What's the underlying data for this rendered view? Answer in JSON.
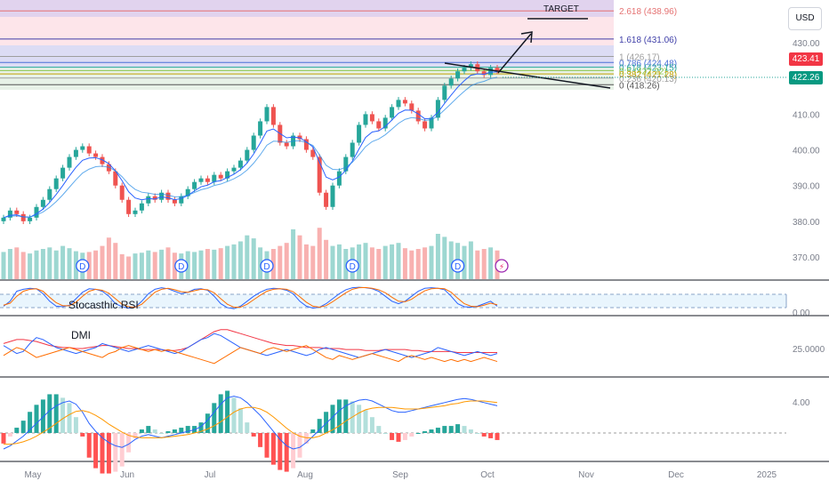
{
  "header": {
    "currency_label": "USD"
  },
  "colors": {
    "up": "#26a69a",
    "down": "#ef5350",
    "ema_fast": "#2962ff",
    "ema_slow": "#4c6ef5",
    "rsi_k": "#2962ff",
    "rsi_d": "#ff6d00",
    "dmi_plus": "#2962ff",
    "dmi_minus": "#ff6d00",
    "adx": "#f23645",
    "macd": "#2962ff",
    "signal": "#ff9800"
  },
  "chart_data": [
    {
      "type": "candlestick",
      "title": "",
      "x_ticks": [
        "May",
        "Jun",
        "Jul",
        "Aug",
        "Sep",
        "Oct",
        "Nov",
        "Dec",
        "2025"
      ],
      "y_ticks": [
        "370.00",
        "380.00",
        "390.00",
        "400.00",
        "410.00",
        "420.00",
        "430.00"
      ],
      "ylim": [
        366,
        442
      ],
      "price_labels": {
        "current": "423.41",
        "last": "422.26"
      },
      "fib_levels": [
        {
          "ratio": 2.618,
          "label": "2.618 (438.96)",
          "value": 438.96,
          "color": "#e57373"
        },
        {
          "ratio": 1.618,
          "label": "1.618 (431.06)",
          "value": 431.06,
          "color": "#3f3fa8"
        },
        {
          "ratio": 1.0,
          "label": "1 (426.17)",
          "value": 426.17,
          "color": "#9e9e9e"
        },
        {
          "ratio": 0.786,
          "label": "0.786 (424.48)",
          "value": 424.48,
          "color": "#4a6fd6"
        },
        {
          "ratio": 0.618,
          "label": "0.618 (423.15)",
          "value": 423.15,
          "color": "#26a69a"
        },
        {
          "ratio": 0.5,
          "label": "0.5 (422.22)",
          "value": 422.22,
          "color": "#8bc34a"
        },
        {
          "ratio": 0.382,
          "label": "0.382 (421.28)",
          "value": 421.28,
          "color": "#c0a000"
        },
        {
          "ratio": 0.236,
          "label": "0.236 (420.13)",
          "value": 420.13,
          "color": "#9e9e9e"
        },
        {
          "ratio": 0,
          "label": "0 (418.26)",
          "value": 418.26,
          "color": "#555555"
        }
      ],
      "annotations": {
        "target_label": "TARGET",
        "dividend_marker": "D",
        "earnings_marker": "⚡"
      },
      "series": [
        {
          "name": "price_close",
          "values": [
            381,
            383,
            382,
            380,
            381,
            384,
            386,
            389,
            392,
            395,
            398,
            400,
            401,
            399,
            398,
            396,
            394,
            390,
            386,
            382,
            383,
            385,
            387,
            386,
            388,
            386,
            385,
            387,
            389,
            391,
            392,
            391,
            393,
            392,
            394,
            395,
            397,
            400,
            404,
            408,
            412,
            407,
            402,
            401,
            404,
            403,
            400,
            398,
            388,
            384,
            390,
            394,
            398,
            402,
            407,
            410,
            408,
            406,
            409,
            412,
            414,
            413,
            411,
            408,
            406,
            409,
            414,
            418,
            420,
            422,
            423,
            424,
            422,
            421,
            423,
            422
          ]
        },
        {
          "name": "volume",
          "values": [
            36,
            40,
            42,
            36,
            34,
            38,
            40,
            42,
            38,
            44,
            41,
            37,
            35,
            36,
            38,
            44,
            55,
            48,
            33,
            30,
            34,
            35,
            38,
            36,
            39,
            42,
            35,
            34,
            37,
            36,
            38,
            40,
            39,
            41,
            44,
            46,
            50,
            58,
            54,
            42,
            37,
            40,
            44,
            48,
            66,
            58,
            46,
            44,
            68,
            52,
            44,
            46,
            40,
            42,
            46,
            48,
            42,
            40,
            44,
            46,
            48,
            41,
            38,
            40,
            42,
            44,
            60,
            56,
            50,
            48,
            44,
            50,
            38,
            40,
            42,
            38
          ]
        }
      ]
    },
    {
      "type": "line",
      "title": "Stocasthic RSI",
      "y_ticks": [
        "0.00"
      ],
      "series": [
        {
          "name": "K",
          "values": [
            20,
            40,
            80,
            88,
            92,
            90,
            70,
            40,
            20,
            18,
            24,
            50,
            76,
            90,
            88,
            80,
            60,
            30,
            18,
            12,
            16,
            40,
            70,
            88,
            94,
            90,
            80,
            70,
            76,
            88,
            90,
            84,
            60,
            30,
            14,
            10,
            20,
            40,
            60,
            76,
            88,
            92,
            90,
            84,
            70,
            40,
            20,
            12,
            16,
            30,
            50,
            70,
            86,
            94,
            96,
            94,
            90,
            80,
            60,
            40,
            30,
            40,
            60,
            80,
            92,
            94,
            92,
            86,
            60,
            30,
            18,
            16,
            20,
            30,
            40,
            20
          ]
        },
        {
          "name": "D",
          "values": [
            24,
            32,
            60,
            80,
            88,
            90,
            80,
            56,
            34,
            22,
            22,
            36,
            60,
            80,
            88,
            84,
            72,
            50,
            28,
            18,
            16,
            28,
            52,
            76,
            88,
            92,
            86,
            78,
            76,
            82,
            88,
            86,
            74,
            50,
            28,
            16,
            16,
            28,
            46,
            64,
            80,
            88,
            90,
            88,
            78,
            58,
            36,
            20,
            16,
            22,
            38,
            56,
            74,
            88,
            94,
            95,
            92,
            86,
            74,
            56,
            40,
            38,
            48,
            66,
            82,
            90,
            92,
            90,
            76,
            52,
            30,
            20,
            18,
            24,
            32,
            26
          ]
        }
      ]
    },
    {
      "type": "line",
      "title": "DMI",
      "y_ticks": [
        "25.0000"
      ],
      "series": [
        {
          "name": "+DI",
          "values": [
            28,
            24,
            20,
            22,
            30,
            36,
            34,
            30,
            26,
            24,
            22,
            20,
            22,
            24,
            26,
            30,
            28,
            26,
            24,
            22,
            24,
            26,
            28,
            26,
            24,
            22,
            20,
            22,
            26,
            30,
            34,
            36,
            40,
            38,
            34,
            30,
            26,
            24,
            22,
            20,
            18,
            20,
            22,
            24,
            22,
            20,
            18,
            20,
            24,
            26,
            24,
            22,
            20,
            18,
            16,
            18,
            20,
            22,
            24,
            22,
            20,
            18,
            16,
            18,
            20,
            22,
            26,
            24,
            22,
            20,
            18,
            20,
            22,
            20,
            18,
            20
          ]
        },
        {
          "name": "-DI",
          "values": [
            18,
            22,
            26,
            24,
            20,
            16,
            18,
            20,
            22,
            24,
            26,
            24,
            22,
            20,
            18,
            16,
            20,
            22,
            26,
            28,
            26,
            24,
            22,
            24,
            22,
            24,
            22,
            20,
            18,
            16,
            14,
            12,
            10,
            14,
            18,
            22,
            26,
            24,
            22,
            20,
            24,
            26,
            24,
            22,
            24,
            26,
            28,
            24,
            20,
            16,
            14,
            18,
            16,
            14,
            16,
            18,
            20,
            18,
            16,
            14,
            12,
            16,
            18,
            16,
            14,
            16,
            14,
            12,
            14,
            12,
            14,
            12,
            14,
            16,
            14,
            12
          ]
        },
        {
          "name": "ADX",
          "values": [
            30,
            32,
            34,
            34,
            33,
            32,
            30,
            28,
            27,
            26,
            26,
            25,
            25,
            26,
            27,
            28,
            28,
            27,
            26,
            25,
            25,
            24,
            24,
            24,
            24,
            23,
            23,
            24,
            26,
            30,
            34,
            38,
            42,
            44,
            44,
            42,
            40,
            38,
            36,
            34,
            32,
            30,
            29,
            28,
            28,
            27,
            26,
            26,
            26,
            25,
            25,
            25,
            24,
            24,
            24,
            23,
            23,
            23,
            24,
            24,
            24,
            24,
            23,
            23,
            22,
            22,
            22,
            22,
            22,
            21,
            21,
            21,
            21,
            21,
            21,
            21
          ]
        }
      ]
    },
    {
      "type": "line",
      "title": "",
      "y_ticks": [
        "4.00"
      ],
      "series": [
        {
          "name": "MACD",
          "values": [
            -2,
            -1.6,
            -1,
            -0.4,
            0.4,
            1.2,
            2,
            2.8,
            3.4,
            3.8,
            4,
            3.6,
            2.6,
            1.2,
            0.2,
            -0.6,
            -1.2,
            -1.6,
            -1.8,
            -1.4,
            -0.8,
            -0.4,
            -0.2,
            -0.4,
            -0.6,
            -0.4,
            -0.2,
            0,
            0.2,
            0.4,
            0.8,
            1.6,
            2.6,
            3.6,
            4.4,
            4.6,
            4.4,
            3.8,
            3,
            2.2,
            1.2,
            0.2,
            -0.8,
            -1.6,
            -2,
            -1.8,
            -1.2,
            -0.4,
            0.4,
            1.2,
            2,
            2.8,
            3.4,
            3.8,
            4.1,
            4.2,
            4,
            3.6,
            3.2,
            2.8,
            2.6,
            2.6,
            2.8,
            3,
            3.2,
            3.4,
            3.6,
            3.8,
            4,
            4.2,
            4.3,
            4.2,
            4,
            3.8,
            3.6,
            3.4
          ]
        },
        {
          "name": "Signal",
          "values": [
            -1.4,
            -1.4,
            -1.3,
            -1.1,
            -0.8,
            -0.4,
            0.1,
            0.6,
            1.2,
            1.8,
            2.3,
            2.7,
            2.8,
            2.6,
            2.2,
            1.7,
            1.1,
            0.6,
            0.1,
            -0.3,
            -0.5,
            -0.6,
            -0.6,
            -0.6,
            -0.6,
            -0.5,
            -0.4,
            -0.3,
            -0.2,
            0,
            0.2,
            0.5,
            0.9,
            1.4,
            2,
            2.6,
            3,
            3.2,
            3.2,
            3,
            2.6,
            2,
            1.3,
            0.6,
            0,
            -0.4,
            -0.6,
            -0.6,
            -0.4,
            0,
            0.4,
            0.9,
            1.5,
            2,
            2.5,
            2.9,
            3.1,
            3.2,
            3.2,
            3.2,
            3.1,
            3,
            3,
            3,
            3.1,
            3.2,
            3.3,
            3.4,
            3.6,
            3.7,
            3.9,
            4,
            4,
            4,
            3.9,
            3.8
          ]
        }
      ]
    }
  ]
}
